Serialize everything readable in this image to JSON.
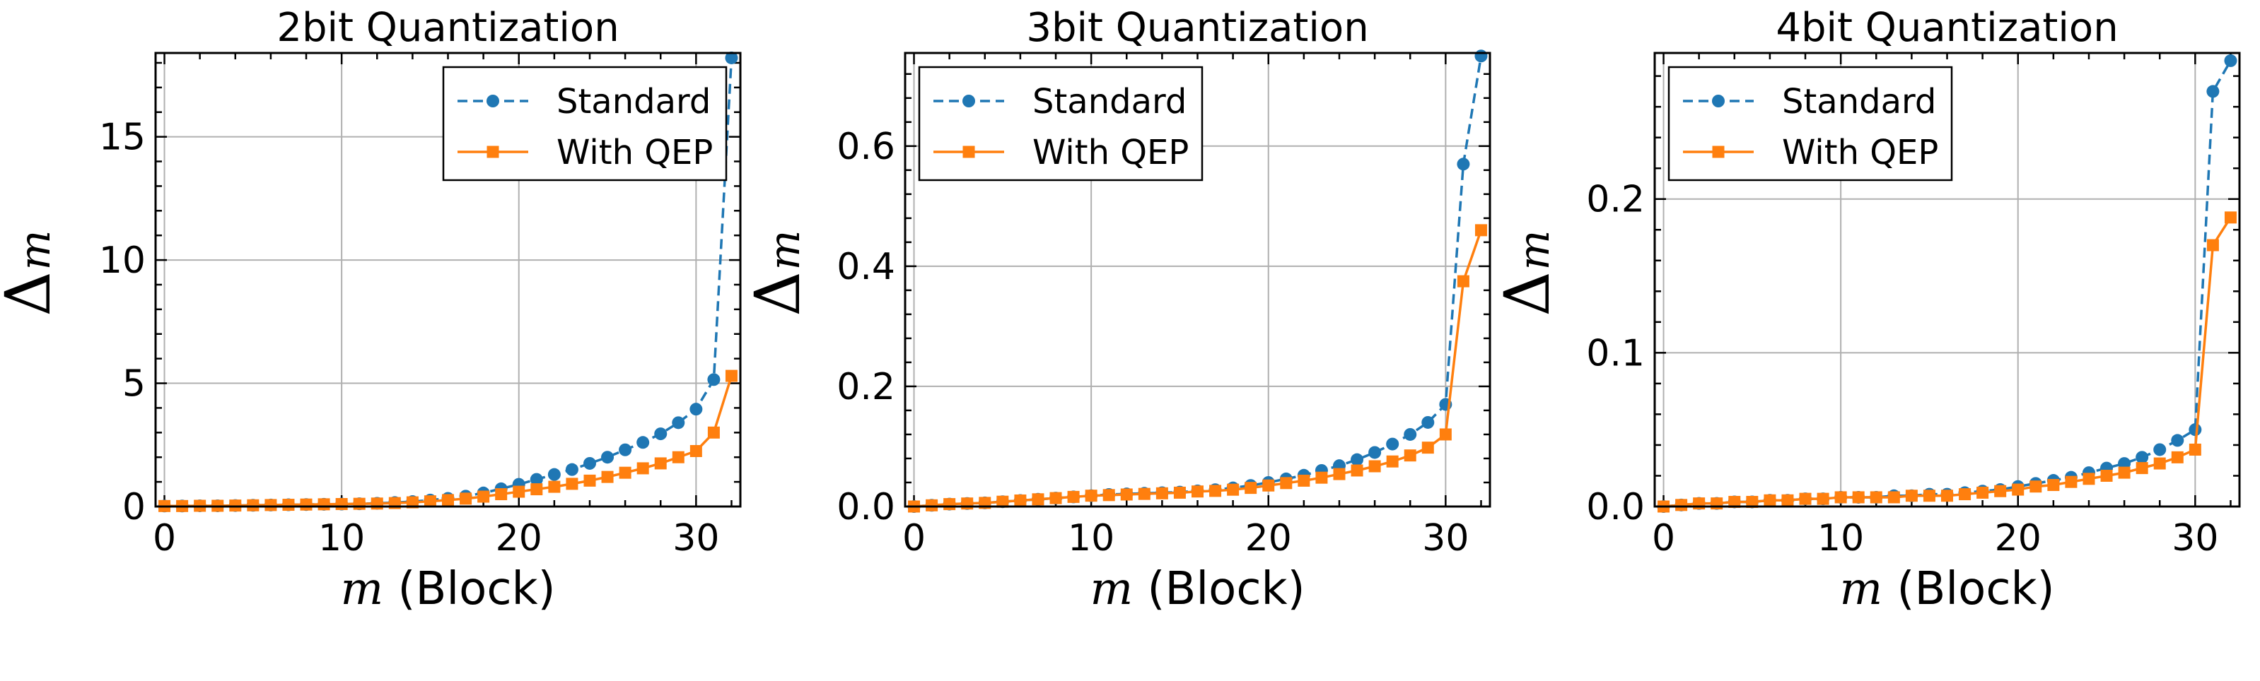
{
  "colors": {
    "standard": "#1f77b4",
    "with_qep": "#ff7f0e"
  },
  "chart_data": [
    {
      "type": "line",
      "title": "2bit Quantization",
      "xlabel_symbol": "m",
      "xlabel": "(Block)",
      "ylabel_symbol": "Δ",
      "ylabel_sub": "m",
      "xlim": [
        -0.5,
        32.5
      ],
      "ylim": [
        0,
        18.4
      ],
      "xticks": [
        0,
        10,
        20,
        30
      ],
      "yticks": [
        0,
        5,
        10,
        15
      ],
      "ytick_labels": [
        "0",
        "5",
        "10",
        "15"
      ],
      "grid": true,
      "legend": "top-right",
      "x": [
        0,
        1,
        2,
        3,
        4,
        5,
        6,
        7,
        8,
        9,
        10,
        11,
        12,
        13,
        14,
        15,
        16,
        17,
        18,
        19,
        20,
        21,
        22,
        23,
        24,
        25,
        26,
        27,
        28,
        29,
        30,
        31,
        32
      ],
      "series": [
        {
          "name": "Standard",
          "style": "dashed",
          "marker": "circle",
          "values": [
            0.02,
            0.02,
            0.03,
            0.03,
            0.04,
            0.05,
            0.06,
            0.07,
            0.08,
            0.09,
            0.1,
            0.11,
            0.13,
            0.16,
            0.2,
            0.26,
            0.33,
            0.42,
            0.55,
            0.72,
            0.9,
            1.1,
            1.3,
            1.5,
            1.75,
            2.0,
            2.3,
            2.6,
            2.95,
            3.4,
            3.95,
            5.15,
            18.2
          ]
        },
        {
          "name": "With QEP",
          "style": "solid",
          "marker": "square",
          "values": [
            0.02,
            0.02,
            0.03,
            0.03,
            0.04,
            0.05,
            0.06,
            0.07,
            0.08,
            0.09,
            0.1,
            0.11,
            0.12,
            0.14,
            0.17,
            0.21,
            0.26,
            0.32,
            0.4,
            0.5,
            0.6,
            0.7,
            0.8,
            0.92,
            1.05,
            1.2,
            1.37,
            1.55,
            1.75,
            2.0,
            2.25,
            3.0,
            5.3
          ]
        }
      ]
    },
    {
      "type": "line",
      "title": "3bit Quantization",
      "xlabel_symbol": "m",
      "xlabel": "(Block)",
      "ylabel_symbol": "Δ",
      "ylabel_sub": "m",
      "xlim": [
        -0.5,
        32.5
      ],
      "ylim": [
        0,
        0.755
      ],
      "xticks": [
        0,
        10,
        20,
        30
      ],
      "yticks": [
        0,
        0.2,
        0.4,
        0.6
      ],
      "ytick_labels": [
        "0.0",
        "0.2",
        "0.4",
        "0.6"
      ],
      "grid": true,
      "legend": "top-left",
      "x": [
        0,
        1,
        2,
        3,
        4,
        5,
        6,
        7,
        8,
        9,
        10,
        11,
        12,
        13,
        14,
        15,
        16,
        17,
        18,
        19,
        20,
        21,
        22,
        23,
        24,
        25,
        26,
        27,
        28,
        29,
        30,
        31,
        32
      ],
      "series": [
        {
          "name": "Standard",
          "style": "dashed",
          "marker": "circle",
          "values": [
            0.0,
            0.002,
            0.004,
            0.005,
            0.006,
            0.008,
            0.01,
            0.012,
            0.014,
            0.016,
            0.018,
            0.02,
            0.021,
            0.022,
            0.023,
            0.024,
            0.026,
            0.028,
            0.031,
            0.035,
            0.04,
            0.046,
            0.052,
            0.06,
            0.068,
            0.078,
            0.09,
            0.104,
            0.12,
            0.14,
            0.17,
            0.57,
            0.75
          ]
        },
        {
          "name": "With QEP",
          "style": "solid",
          "marker": "square",
          "values": [
            0.0,
            0.002,
            0.004,
            0.005,
            0.006,
            0.008,
            0.01,
            0.012,
            0.014,
            0.016,
            0.018,
            0.019,
            0.02,
            0.021,
            0.022,
            0.023,
            0.025,
            0.026,
            0.028,
            0.031,
            0.035,
            0.039,
            0.043,
            0.048,
            0.054,
            0.06,
            0.067,
            0.075,
            0.085,
            0.098,
            0.12,
            0.375,
            0.46
          ]
        }
      ]
    },
    {
      "type": "line",
      "title": "4bit Quantization",
      "xlabel_symbol": "m",
      "xlabel": "(Block)",
      "ylabel_symbol": "Δ",
      "ylabel_sub": "m",
      "xlim": [
        -0.5,
        32.5
      ],
      "ylim": [
        0,
        0.295
      ],
      "xticks": [
        0,
        10,
        20,
        30
      ],
      "yticks": [
        0,
        0.1,
        0.2
      ],
      "ytick_labels": [
        "0.0",
        "0.1",
        "0.2"
      ],
      "grid": true,
      "legend": "top-left",
      "x": [
        0,
        1,
        2,
        3,
        4,
        5,
        6,
        7,
        8,
        9,
        10,
        11,
        12,
        13,
        14,
        15,
        16,
        17,
        18,
        19,
        20,
        21,
        22,
        23,
        24,
        25,
        26,
        27,
        28,
        29,
        30,
        31,
        32
      ],
      "series": [
        {
          "name": "Standard",
          "style": "dashed",
          "marker": "circle",
          "values": [
            0.0,
            0.001,
            0.002,
            0.002,
            0.003,
            0.003,
            0.004,
            0.004,
            0.005,
            0.005,
            0.006,
            0.006,
            0.006,
            0.007,
            0.007,
            0.008,
            0.008,
            0.009,
            0.01,
            0.011,
            0.013,
            0.015,
            0.017,
            0.019,
            0.022,
            0.025,
            0.028,
            0.032,
            0.037,
            0.043,
            0.05,
            0.27,
            0.29
          ]
        },
        {
          "name": "With QEP",
          "style": "solid",
          "marker": "square",
          "values": [
            0.0,
            0.001,
            0.002,
            0.002,
            0.003,
            0.003,
            0.004,
            0.004,
            0.005,
            0.005,
            0.006,
            0.006,
            0.006,
            0.006,
            0.007,
            0.007,
            0.007,
            0.008,
            0.009,
            0.01,
            0.011,
            0.013,
            0.014,
            0.016,
            0.018,
            0.02,
            0.022,
            0.025,
            0.028,
            0.032,
            0.037,
            0.17,
            0.188
          ]
        }
      ]
    }
  ]
}
